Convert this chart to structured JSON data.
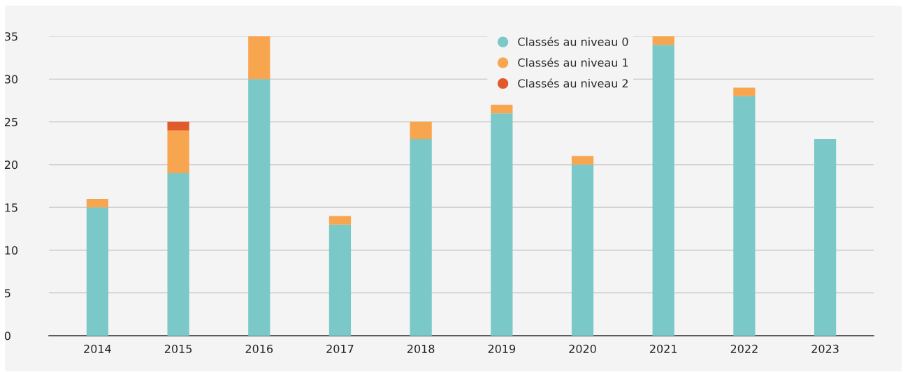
{
  "chart_data": {
    "type": "bar",
    "stacked": true,
    "categories": [
      "2014",
      "2015",
      "2016",
      "2017",
      "2018",
      "2019",
      "2020",
      "2021",
      "2022",
      "2023"
    ],
    "series": [
      {
        "name": "Classés au niveau 0",
        "color": "#7ac8c8",
        "values": [
          15,
          19,
          30,
          13,
          23,
          26,
          20,
          34,
          28,
          23
        ]
      },
      {
        "name": "Classés au niveau 1",
        "color": "#f7a54f",
        "values": [
          1,
          5,
          5,
          1,
          2,
          1,
          1,
          1,
          1,
          null
        ]
      },
      {
        "name": "Classés au niveau 2",
        "color": "#e05a2b",
        "values": [
          null,
          1,
          null,
          null,
          null,
          null,
          null,
          null,
          null,
          null
        ]
      }
    ],
    "ylim": [
      0,
      35
    ],
    "yticks": [
      0,
      5,
      10,
      15,
      20,
      25,
      30,
      35
    ],
    "grid": "y",
    "legend": "top"
  }
}
